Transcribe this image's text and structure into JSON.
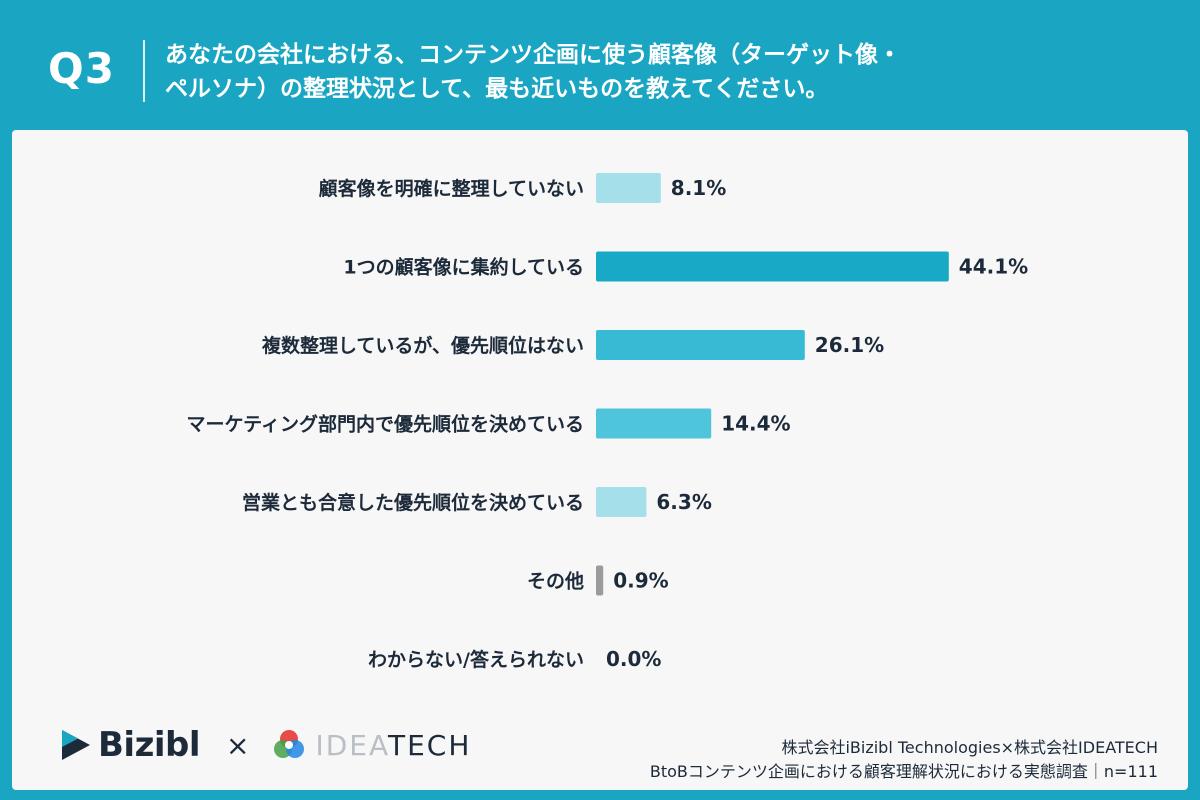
{
  "header": {
    "question_label": "Q3",
    "question_line1": "あなたの会社における、コンテンツ企画に使う顧客像（ターゲット像・",
    "question_line2": "ペルソナ）の整理状況として、最も近いものを教えてください。"
  },
  "colors": {
    "brand_teal": "#1aa6c2",
    "bar_light": "#a5dfea",
    "bar_mid": "#4ec5da",
    "bar_dark": "#17a9c6",
    "bar_gray": "#9b9b9b"
  },
  "chart_data": {
    "type": "bar",
    "orientation": "horizontal",
    "categories": [
      "顧客像を明確に整理していない",
      "1つの顧客像に集約している",
      "複数整理しているが、優先順位はない",
      "マーケティング部門内で優先順位を決めている",
      "営業とも合意した優先順位を決めている",
      "その他",
      "わからない/答えられない"
    ],
    "values": [
      8.1,
      44.1,
      26.1,
      14.4,
      6.3,
      0.9,
      0.0
    ],
    "value_labels": [
      "8.1%",
      "44.1%",
      "26.1%",
      "14.4%",
      "6.3%",
      "0.9%",
      "0.0%"
    ],
    "bar_colors": [
      "#a5dfea",
      "#17a9c6",
      "#37bbd4",
      "#4ec5da",
      "#a5dfea",
      "#9b9b9b",
      "#9b9b9b"
    ],
    "xlim": [
      0,
      50
    ],
    "grid": false,
    "title": "",
    "xlabel": "",
    "ylabel": ""
  },
  "footer": {
    "brand1": "Bizibl",
    "separator": "×",
    "brand2_light": "IDEA",
    "brand2_dark": "TECH",
    "credit_line1": "株式会社iBizibl Technologies×株式会社IDEATECH",
    "credit_line2": "BtoBコンテンツ企画における顧客理解状況における実態調査｜n=111"
  }
}
